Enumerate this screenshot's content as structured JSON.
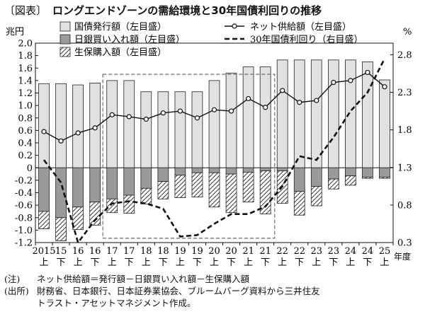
{
  "header": {
    "tag": "〔図表〕",
    "title": "ロングエンドゾーンの需給環境と30年国債利回りの推移"
  },
  "notes": {
    "note_label": "(注)",
    "note_text": "ネット供給額＝発行額－日銀買い入れ額－生保購入額",
    "source_label": "(出所)",
    "source_text_1": "財務省、日本銀行、日本証券業協会、ブルームバーグ資料から三井住友",
    "source_text_2": "トラスト・アセットマネジメント作成。"
  },
  "chart_data": {
    "type": "bar",
    "left_unit": "兆円",
    "right_unit": "%",
    "year_unit": "年度",
    "x_years": [
      "2015",
      "15",
      "16",
      "16",
      "17",
      "17",
      "18",
      "18",
      "19",
      "19",
      "20",
      "20",
      "21",
      "21",
      "22",
      "22",
      "23",
      "23",
      "24",
      "24",
      "25"
    ],
    "x_halves": [
      "上",
      "下",
      "上",
      "下",
      "上",
      "下",
      "上",
      "下",
      "上",
      "下",
      "上",
      "下",
      "上",
      "下",
      "上",
      "下",
      "上",
      "下",
      "上",
      "下",
      "上"
    ],
    "ylim_left": [
      -1.2,
      2.0
    ],
    "yticks_left": [
      "2.0",
      "1.8",
      "1.6",
      "1.4",
      "1.2",
      "1.0",
      "0.8",
      "0.6",
      "0.4",
      "0.2",
      "0",
      "-0.2",
      "-0.4",
      "-0.6",
      "-0.8",
      "-1.0",
      "-1.2"
    ],
    "ylim_right": [
      0.3,
      2.955
    ],
    "yticks_right": [
      "2.8",
      "2.3",
      "1.8",
      "1.3",
      "0.8",
      "0.3"
    ],
    "legend": [
      {
        "name": "国債発行額（左目盛）",
        "style": "light-bar"
      },
      {
        "name": "日銀買い入れ額（左目盛）",
        "style": "gray-bar"
      },
      {
        "name": "生保購入額（左目盛）",
        "style": "hatched-bar"
      },
      {
        "name": "ネット供給額（左目盛）",
        "style": "line-marker"
      },
      {
        "name": "30年国債利回り（右目盛）",
        "style": "dashed-line"
      }
    ],
    "series": [
      {
        "name": "国債発行額（左目盛）",
        "axis": "left",
        "values": [
          1.35,
          1.35,
          1.33,
          1.36,
          1.4,
          1.4,
          1.22,
          1.22,
          1.22,
          1.22,
          1.4,
          1.52,
          1.62,
          1.62,
          1.73,
          1.73,
          1.73,
          1.73,
          1.73,
          1.7,
          1.41
        ]
      },
      {
        "name": "日銀買い入れ額（左目盛）",
        "axis": "left",
        "values": [
          -0.7,
          -0.8,
          -0.63,
          -0.55,
          -0.5,
          -0.44,
          -0.33,
          -0.22,
          -0.12,
          -0.08,
          -0.08,
          -0.1,
          -0.07,
          -0.05,
          -0.05,
          -0.38,
          -0.3,
          -0.18,
          -0.13,
          -0.15,
          -0.15
        ]
      },
      {
        "name": "生保購入額（左目盛）",
        "axis": "left",
        "values": [
          -0.28,
          -0.37,
          -0.36,
          -0.37,
          -0.22,
          -0.29,
          -0.25,
          -0.28,
          -0.36,
          -0.39,
          -0.55,
          -0.62,
          -0.48,
          -0.69,
          -0.52,
          -0.38,
          -0.31,
          -0.16,
          -0.15,
          -0.02,
          -0.02
        ]
      },
      {
        "name": "ネット供給額（左目盛）",
        "axis": "left",
        "values": [
          0.58,
          0.43,
          0.56,
          0.64,
          0.85,
          0.82,
          0.78,
          0.88,
          0.91,
          0.8,
          0.93,
          0.91,
          1.11,
          0.97,
          1.24,
          1.05,
          1.08,
          1.37,
          1.4,
          1.53,
          1.3
        ]
      },
      {
        "name": "30年国債利回り（右目盛）",
        "axis": "right",
        "values": [
          1.4,
          1.1,
          0.3,
          0.6,
          0.82,
          0.85,
          0.82,
          0.75,
          0.38,
          0.4,
          0.55,
          0.68,
          0.68,
          0.78,
          1.05,
          1.45,
          1.4,
          1.7,
          2.05,
          2.3,
          2.75
        ]
      }
    ],
    "highlight_range": [
      "17上",
      "21下"
    ],
    "grid": false
  }
}
